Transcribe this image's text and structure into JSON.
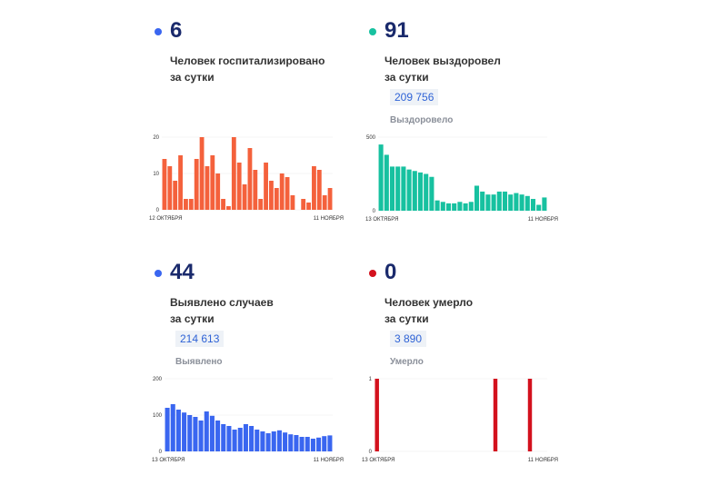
{
  "hospitalized": {
    "value": "6",
    "caption": "Человек госпитализировано\nза сутки",
    "color": "#f4613c",
    "chart_data": {
      "type": "bar",
      "x_start_label": "12 ОКТЯБРЯ",
      "x_end_label": "11 НОЯБРЯ",
      "y_ticks": [
        0,
        10,
        20
      ],
      "ylim": [
        0,
        20
      ],
      "values": [
        14,
        12,
        8,
        15,
        3,
        3,
        14,
        20,
        12,
        15,
        10,
        3,
        1,
        20,
        13,
        7,
        17,
        11,
        3,
        13,
        8,
        6,
        10,
        9,
        4,
        0,
        3,
        2,
        12,
        11,
        4,
        6
      ]
    }
  },
  "recovered": {
    "value": "91",
    "caption": "Человек выздоровел\nза сутки",
    "total": "209 756",
    "total_label": "Выздоровело",
    "color": "#17c1a0",
    "chart_data": {
      "type": "bar",
      "x_start_label": "13 ОКТЯБРЯ",
      "x_end_label": "11 НОЯБРЯ",
      "y_ticks": [
        0,
        500
      ],
      "ylim": [
        0,
        500
      ],
      "values": [
        450,
        380,
        300,
        300,
        300,
        280,
        270,
        260,
        250,
        230,
        70,
        60,
        50,
        50,
        60,
        50,
        60,
        170,
        130,
        110,
        110,
        130,
        130,
        110,
        120,
        110,
        100,
        80,
        40,
        90
      ]
    }
  },
  "cases": {
    "value": "44",
    "caption": "Выявлено случаев\nза сутки",
    "total": "214 613",
    "total_label": "Выявлено",
    "color": "#3a66f0",
    "chart_data": {
      "type": "bar",
      "x_start_label": "13 ОКТЯБРЯ",
      "x_end_label": "11 НОЯБРЯ",
      "y_ticks": [
        0,
        100,
        200
      ],
      "ylim": [
        0,
        200
      ],
      "values": [
        120,
        130,
        115,
        107,
        100,
        95,
        85,
        110,
        98,
        85,
        75,
        70,
        60,
        65,
        75,
        70,
        60,
        55,
        50,
        55,
        58,
        52,
        47,
        45,
        40,
        40,
        35,
        38,
        42,
        44
      ]
    }
  },
  "deaths": {
    "value": "0",
    "caption": "Человек умерло\nза сутки",
    "total": "3 890",
    "total_label": "Умерло",
    "color": "#d3111d",
    "chart_data": {
      "type": "bar",
      "x_start_label": "13 ОКТЯБРЯ",
      "x_end_label": "11 НОЯБРЯ",
      "y_ticks": [
        0,
        1
      ],
      "ylim": [
        0,
        1
      ],
      "values": [
        1,
        0,
        0,
        0,
        0,
        0,
        0,
        0,
        0,
        0,
        0,
        0,
        0,
        0,
        0,
        0,
        0,
        0,
        0,
        0,
        0,
        0,
        0,
        0,
        1,
        0,
        0,
        0,
        0,
        0,
        0,
        1,
        0,
        0,
        0
      ]
    }
  }
}
